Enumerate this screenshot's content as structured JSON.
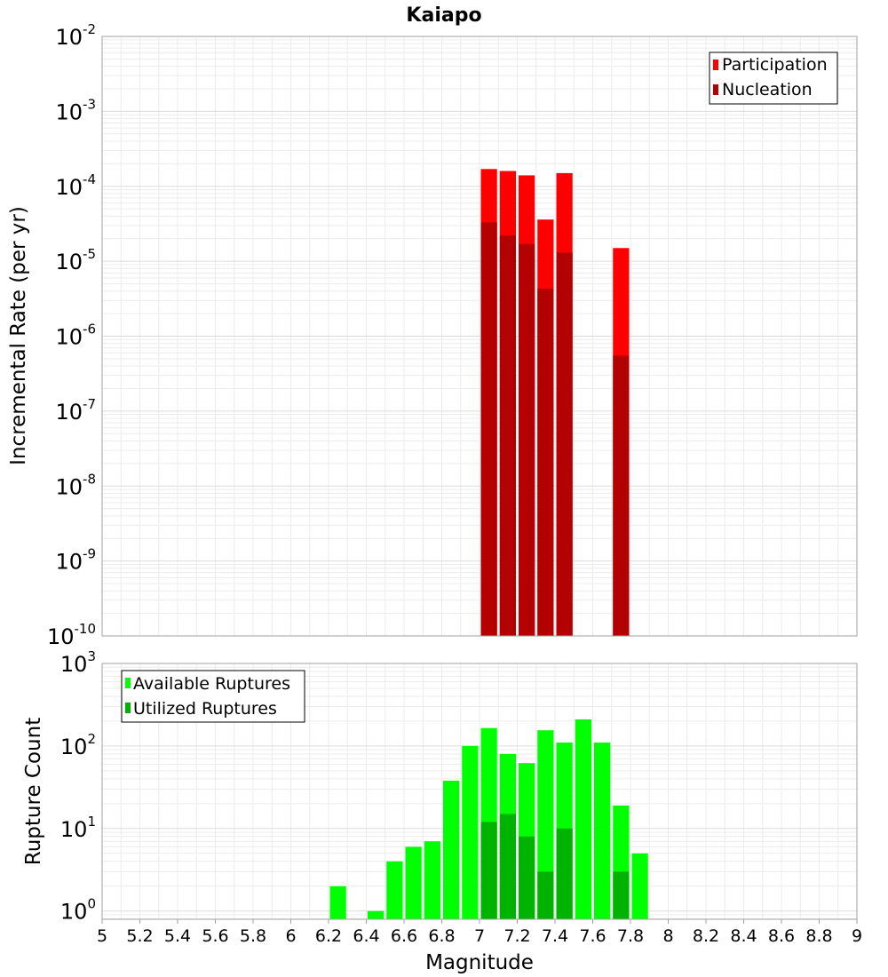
{
  "title": "Kaiapo",
  "xlabel": "Magnitude",
  "x_ticks": [
    "5",
    "5.2",
    "5.4",
    "5.6",
    "5.8",
    "6",
    "6.2",
    "6.4",
    "6.6",
    "6.8",
    "7",
    "7.2",
    "7.4",
    "7.6",
    "7.8",
    "8",
    "8.2",
    "8.4",
    "8.6",
    "8.8",
    "9"
  ],
  "chart_data": [
    {
      "type": "bar",
      "name": "rate-panel",
      "ylabel": "Incremental Rate (per yr)",
      "yscale": "log",
      "xlim": [
        5,
        9
      ],
      "ylim_exp": [
        -10,
        -2
      ],
      "y_tick_base": "10",
      "y_tick_exponents": [
        "-10",
        "-9",
        "-8",
        "-7",
        "-6",
        "-5",
        "-4",
        "-3",
        "-2"
      ],
      "bar_width": 0.1,
      "legend_position": "top-right",
      "series": [
        {
          "name": "Participation",
          "color": "#ff0000",
          "x": [
            7.05,
            7.15,
            7.25,
            7.35,
            7.45,
            7.75
          ],
          "values": [
            0.00017,
            0.00016,
            0.00014,
            3.6e-05,
            0.00015,
            1.5e-05
          ]
        },
        {
          "name": "Nucleation",
          "color": "#b30000",
          "x": [
            7.05,
            7.15,
            7.25,
            7.35,
            7.45,
            7.75
          ],
          "values": [
            3.3e-05,
            2.2e-05,
            1.7e-05,
            4.3e-06,
            1.3e-05,
            5.5e-07
          ]
        }
      ]
    },
    {
      "type": "bar",
      "name": "count-panel",
      "ylabel": "Rupture Count",
      "yscale": "log",
      "xlim": [
        5,
        9
      ],
      "ylim_exp": [
        -0.1,
        3
      ],
      "y_tick_base": "10",
      "y_tick_exponents": [
        "0",
        "1",
        "2",
        "3"
      ],
      "bar_width": 0.1,
      "legend_position": "top-left",
      "series": [
        {
          "name": "Available Ruptures",
          "color": "#00ff00",
          "x": [
            6.25,
            6.45,
            6.55,
            6.65,
            6.75,
            6.85,
            6.95,
            7.05,
            7.15,
            7.25,
            7.35,
            7.45,
            7.55,
            7.65,
            7.75,
            7.85
          ],
          "values": [
            2,
            1,
            4,
            6,
            7,
            38,
            100,
            165,
            80,
            62,
            155,
            110,
            210,
            110,
            19,
            5
          ]
        },
        {
          "name": "Utilized Ruptures",
          "color": "#00b300",
          "x": [
            7.05,
            7.15,
            7.25,
            7.35,
            7.45,
            7.75
          ],
          "values": [
            12,
            15,
            8,
            3,
            10,
            3
          ]
        }
      ]
    }
  ]
}
